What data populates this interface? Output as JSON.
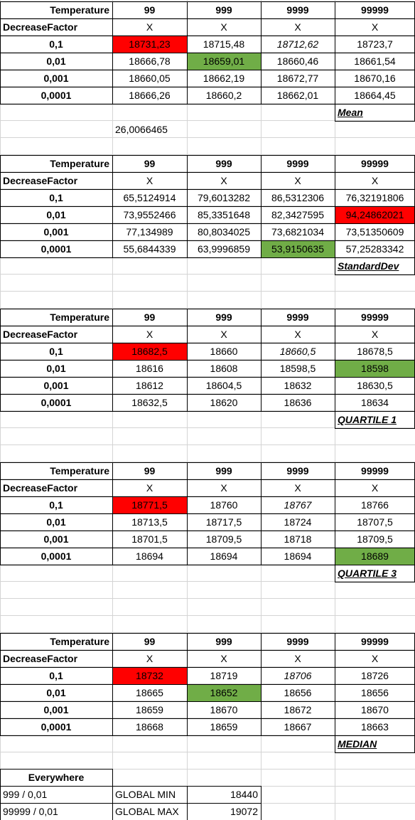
{
  "headers": {
    "temperature": "Temperature",
    "decrease_factor": "DecreaseFactor",
    "temps": [
      "99",
      "999",
      "9999",
      "99999"
    ],
    "x": "X",
    "factors": [
      "0,1",
      "0,01",
      "0,001",
      "0,0001"
    ]
  },
  "colors": {
    "min": "#70ad47",
    "max": "#ff0000"
  },
  "tables": [
    {
      "label": "Mean",
      "rows": [
        [
          "18731,23",
          "18715,48",
          "18712,62",
          "18723,7"
        ],
        [
          "18666,78",
          "18659,01",
          "18660,46",
          "18661,54"
        ],
        [
          "18660,05",
          "18662,19",
          "18672,77",
          "18670,16"
        ],
        [
          "18666,26",
          "18660,2",
          "18662,01",
          "18664,45"
        ]
      ],
      "red": [
        0,
        0
      ],
      "green": [
        1,
        1
      ],
      "italic": [
        0,
        2
      ],
      "extra": "26,0066465"
    },
    {
      "label": "StandardDev",
      "rows": [
        [
          "65,5124914",
          "79,6013282",
          "86,5312306",
          "76,32191806"
        ],
        [
          "73,9552466",
          "85,3351648",
          "82,3427595",
          "94,24862021"
        ],
        [
          "77,134989",
          "80,8034025",
          "73,6821034",
          "73,51350609"
        ],
        [
          "55,6844339",
          "63,9996859",
          "53,9150635",
          "57,25283342"
        ]
      ],
      "red": [
        1,
        3
      ],
      "green": [
        3,
        2
      ],
      "italic": null
    },
    {
      "label": "QUARTILE 1",
      "rows": [
        [
          "18682,5",
          "18660",
          "18660,5",
          "18678,5"
        ],
        [
          "18616",
          "18608",
          "18598,5",
          "18598"
        ],
        [
          "18612",
          "18604,5",
          "18632",
          "18630,5"
        ],
        [
          "18632,5",
          "18620",
          "18636",
          "18634"
        ]
      ],
      "red": [
        0,
        0
      ],
      "green": [
        1,
        3
      ],
      "italic": [
        0,
        2
      ]
    },
    {
      "label": "QUARTILE 3",
      "rows": [
        [
          "18771,5",
          "18760",
          "18767",
          "18766"
        ],
        [
          "18713,5",
          "18717,5",
          "18724",
          "18707,5"
        ],
        [
          "18701,5",
          "18709,5",
          "18718",
          "18709,5"
        ],
        [
          "18694",
          "18694",
          "18694",
          "18689"
        ]
      ],
      "red": [
        0,
        0
      ],
      "green": [
        3,
        3
      ],
      "italic": [
        0,
        2
      ]
    },
    {
      "label": "MEDIAN",
      "rows": [
        [
          "18732",
          "18719",
          "18706",
          "18726"
        ],
        [
          "18665",
          "18652",
          "18656",
          "18656"
        ],
        [
          "18659",
          "18670",
          "18672",
          "18670"
        ],
        [
          "18668",
          "18659",
          "18667",
          "18663"
        ]
      ],
      "red": [
        0,
        0
      ],
      "green": [
        1,
        1
      ],
      "italic": [
        0,
        2
      ]
    }
  ],
  "summary": {
    "title": "Everywhere",
    "rows": [
      {
        "setting": "999 / 0,01",
        "label": "GLOBAL MIN",
        "value": "18440"
      },
      {
        "setting": "99999 / 0,01",
        "label": "GLOBAL MAX",
        "value": "19072"
      }
    ]
  }
}
